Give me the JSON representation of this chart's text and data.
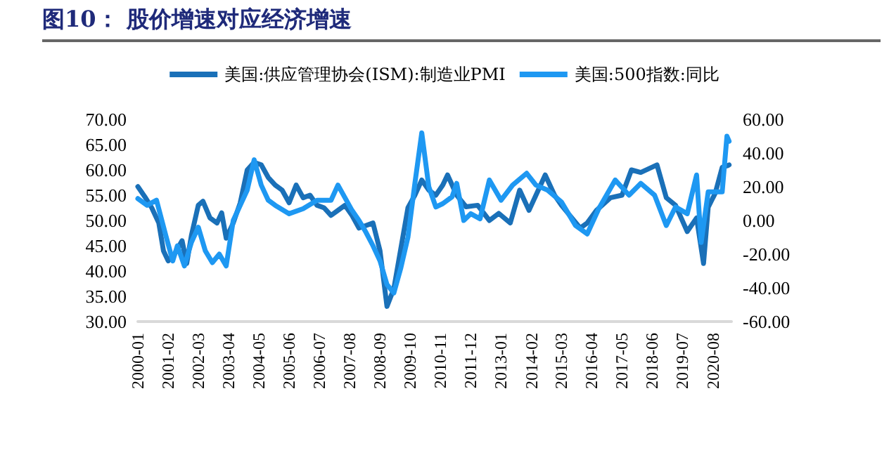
{
  "chart_data": {
    "type": "line",
    "title": "图10：    股价增速对应经济增速",
    "xlim": [
      "2000-01",
      "2021-04"
    ],
    "xticks": [
      "2000-01",
      "2001-02",
      "2002-03",
      "2003-04",
      "2004-05",
      "2005-06",
      "2006-07",
      "2007-08",
      "2008-09",
      "2009-10",
      "2010-11",
      "2011-12",
      "2013-01",
      "2014-02",
      "2015-03",
      "2016-04",
      "2017-05",
      "2018-06",
      "2019-07",
      "2020-08"
    ],
    "ylim": [
      30,
      70
    ],
    "yticks": [
      {
        "value": 30,
        "label": "30.00"
      },
      {
        "value": 35,
        "label": "35.00"
      },
      {
        "value": 40,
        "label": "40.00"
      },
      {
        "value": 45,
        "label": "45.00"
      },
      {
        "value": 50,
        "label": "50.00"
      },
      {
        "value": 55,
        "label": "55.00"
      },
      {
        "value": 60,
        "label": "60.00"
      },
      {
        "value": 65,
        "label": "65.00"
      },
      {
        "value": 70,
        "label": "70.00"
      }
    ],
    "y2lim": [
      -60,
      60
    ],
    "y2ticks": [
      {
        "value": -60,
        "label": "-60.00"
      },
      {
        "value": -40,
        "label": "-40.00"
      },
      {
        "value": -20,
        "label": "-20.00"
      },
      {
        "value": 0,
        "label": "0.00"
      },
      {
        "value": 20,
        "label": "20.00"
      },
      {
        "value": 40,
        "label": "40.00"
      },
      {
        "value": 60,
        "label": "60.00"
      }
    ],
    "grid": false,
    "legend": "top",
    "marker": "none",
    "line_style": "solid",
    "series": [
      {
        "name": "美国:供应管理协会(ISM):制造业PMI",
        "color": "#1a70b8",
        "x": [
          "2000-01",
          "2000-04",
          "2000-07",
          "2000-10",
          "2000-12",
          "2001-02",
          "2001-05",
          "2001-08",
          "2001-10",
          "2001-12",
          "2002-03",
          "2002-05",
          "2002-08",
          "2002-11",
          "2003-01",
          "2003-03",
          "2003-06",
          "2003-09",
          "2003-12",
          "2004-03",
          "2004-06",
          "2004-09",
          "2004-12",
          "2005-03",
          "2005-06",
          "2005-09",
          "2005-12",
          "2006-03",
          "2006-06",
          "2006-09",
          "2006-12",
          "2007-03",
          "2007-06",
          "2007-09",
          "2007-12",
          "2008-03",
          "2008-06",
          "2008-09",
          "2008-12",
          "2009-03",
          "2009-06",
          "2009-09",
          "2009-12",
          "2010-03",
          "2010-06",
          "2010-09",
          "2010-12",
          "2011-02",
          "2011-06",
          "2011-10",
          "2012-03",
          "2012-08",
          "2012-12",
          "2013-05",
          "2013-09",
          "2014-01",
          "2014-08",
          "2014-12",
          "2015-03",
          "2015-11",
          "2016-02",
          "2016-06",
          "2016-12",
          "2017-05",
          "2017-09",
          "2018-01",
          "2018-08",
          "2018-12",
          "2019-04",
          "2019-09",
          "2020-01",
          "2020-04",
          "2020-06",
          "2020-09",
          "2020-12",
          "2021-02",
          "2021-03"
        ],
        "values": [
          56.7,
          54.7,
          52.5,
          49.5,
          44,
          42,
          43.5,
          46,
          41.5,
          47,
          53,
          53.8,
          50.5,
          49.5,
          51.5,
          46.5,
          49.5,
          53.5,
          60,
          61.5,
          61,
          58.5,
          57,
          56,
          53.5,
          57,
          54.5,
          55,
          53,
          52.5,
          51,
          52,
          53,
          51,
          48.5,
          49,
          49.5,
          44,
          33,
          36.5,
          44.5,
          52.5,
          55,
          58,
          56,
          55,
          57,
          59,
          55,
          52.7,
          53,
          50,
          51.4,
          49.5,
          56,
          52,
          59,
          55,
          53,
          48.5,
          49.5,
          52,
          54.5,
          55,
          60,
          59.5,
          61,
          54.5,
          53,
          47.8,
          50.5,
          41.5,
          52.6,
          55.4,
          60.5,
          60.8,
          61
        ]
      },
      {
        "name": "美国:500指数:同比",
        "color": "#1e98f2",
        "axis": "y2",
        "x": [
          "2000-01",
          "2000-05",
          "2000-09",
          "2001-01",
          "2001-04",
          "2001-06",
          "2001-09",
          "2001-12",
          "2002-03",
          "2002-06",
          "2002-09",
          "2002-12",
          "2003-03",
          "2003-06",
          "2003-09",
          "2003-12",
          "2004-03",
          "2004-06",
          "2004-09",
          "2004-12",
          "2005-06",
          "2005-12",
          "2006-06",
          "2006-12",
          "2007-03",
          "2007-09",
          "2007-12",
          "2008-03",
          "2008-06",
          "2008-09",
          "2008-12",
          "2009-03",
          "2009-06",
          "2009-09",
          "2009-12",
          "2010-03",
          "2010-06",
          "2010-09",
          "2010-12",
          "2011-04",
          "2011-06",
          "2011-09",
          "2011-12",
          "2012-04",
          "2012-08",
          "2013-01",
          "2013-06",
          "2013-12",
          "2014-04",
          "2014-09",
          "2015-03",
          "2015-09",
          "2016-02",
          "2016-07",
          "2017-02",
          "2017-08",
          "2018-01",
          "2018-07",
          "2018-12",
          "2019-04",
          "2019-09",
          "2020-01",
          "2020-03",
          "2020-06",
          "2020-12",
          "2021-02",
          "2021-03"
        ],
        "values": [
          13,
          9,
          12,
          -9,
          -24,
          -15,
          -27,
          -13,
          -4,
          -18,
          -25,
          -20,
          -27,
          0,
          9,
          18,
          36,
          21,
          12,
          9,
          4,
          7,
          12,
          12,
          21,
          6,
          0,
          -7,
          -15,
          -24,
          -38,
          -43,
          -28,
          -10,
          22,
          52,
          20,
          8,
          10,
          14,
          22,
          0,
          4,
          1,
          24,
          12,
          21,
          28,
          21,
          18,
          11,
          -3,
          -8,
          7,
          24,
          15,
          22,
          15,
          -3,
          8,
          4,
          27,
          -13,
          17,
          17,
          50,
          47
        ]
      }
    ]
  }
}
